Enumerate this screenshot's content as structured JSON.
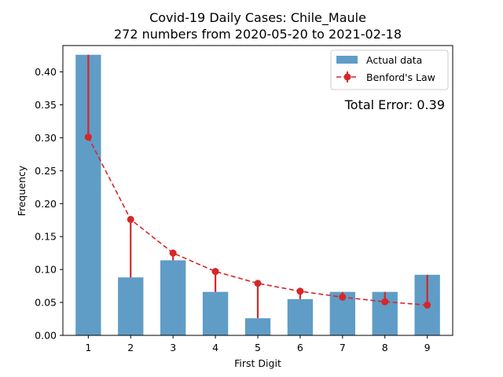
{
  "chart_data": {
    "type": "bar",
    "title": "Covid-19 Daily Cases: Chile_Maule",
    "subtitle": "272 numbers from 2020-05-20 to 2021-02-18",
    "xlabel": "First Digit",
    "ylabel": "Frequency",
    "categories": [
      "1",
      "2",
      "3",
      "4",
      "5",
      "6",
      "7",
      "8",
      "9"
    ],
    "ylim": [
      0,
      0.44
    ],
    "yticks": [
      "0.00",
      "0.05",
      "0.10",
      "0.15",
      "0.20",
      "0.25",
      "0.30",
      "0.35",
      "0.40"
    ],
    "series": [
      {
        "name": "Actual data",
        "kind": "bar",
        "color": "#5f9dc7",
        "values": [
          0.426,
          0.088,
          0.114,
          0.066,
          0.026,
          0.055,
          0.066,
          0.066,
          0.092
        ]
      },
      {
        "name": "Benford's Law",
        "kind": "line-dashed-markers",
        "color": "#d62728",
        "values": [
          0.301,
          0.176,
          0.125,
          0.097,
          0.079,
          0.067,
          0.058,
          0.051,
          0.046
        ]
      }
    ],
    "annotation": "Total Error: 0.39",
    "annotation_color": "#d62728",
    "legend_position": "top-right",
    "grid": false
  }
}
